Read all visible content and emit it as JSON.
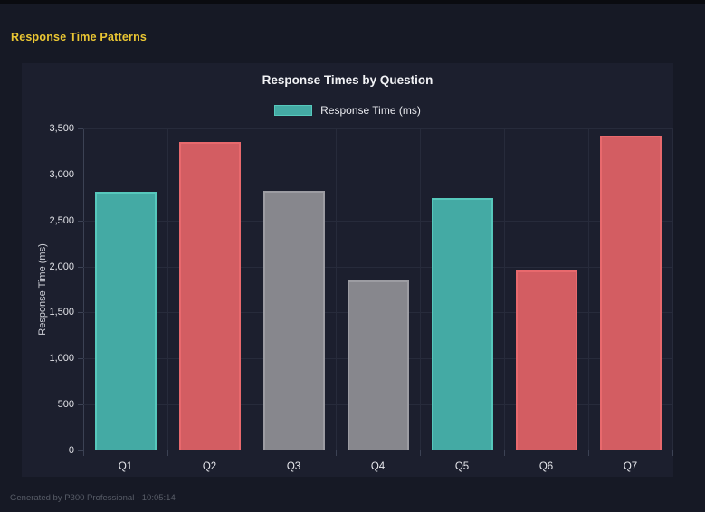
{
  "page": {
    "title": "Response Time Patterns",
    "footer": "Generated by P300 Professional - 10:05:14"
  },
  "chart_data": {
    "type": "bar",
    "title": "Response Times by Question",
    "categories": [
      "Q1",
      "Q2",
      "Q3",
      "Q4",
      "Q5",
      "Q6",
      "Q7"
    ],
    "values": [
      2800,
      3340,
      2810,
      1840,
      2730,
      1950,
      3410
    ],
    "bar_colors": [
      "teal",
      "red",
      "gray",
      "gray",
      "teal",
      "red",
      "red"
    ],
    "palette": {
      "teal": {
        "fill": "#44aaa4",
        "border": "#56c8bc"
      },
      "red": {
        "fill": "#d35d62",
        "border": "#e8696d"
      },
      "gray": {
        "fill": "#87878d",
        "border": "#9c9ca2"
      }
    },
    "legend": {
      "position": "top",
      "items": [
        {
          "label": "Response Time (ms)",
          "color_key": "teal"
        }
      ]
    },
    "xlabel": "",
    "ylabel": "Response Time (ms)",
    "ylim": [
      0,
      3500
    ],
    "ytick_step": 500,
    "ytick_labels": [
      "0",
      "500",
      "1,000",
      "1,500",
      "2,000",
      "2,500",
      "3,000",
      "3,500"
    ],
    "grid": true
  }
}
